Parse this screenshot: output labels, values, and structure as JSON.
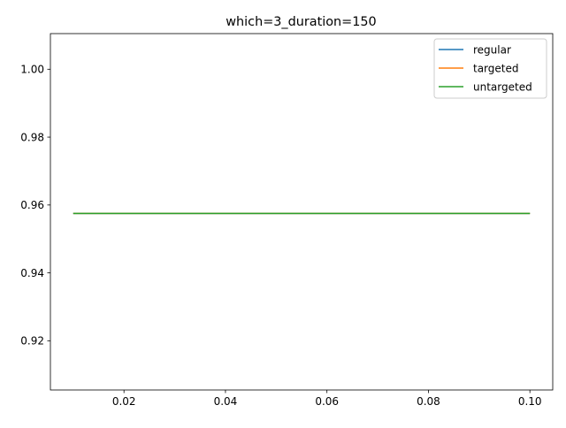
{
  "chart_data": {
    "type": "line",
    "title": "which=3_duration=150",
    "xlabel": "",
    "ylabel": "",
    "xlim": [
      0.0055,
      0.1045
    ],
    "ylim": [
      0.9055,
      1.0105
    ],
    "x_ticks": [
      0.02,
      0.04,
      0.06,
      0.08,
      0.1
    ],
    "x_tick_labels": [
      "0.02",
      "0.04",
      "0.06",
      "0.08",
      "0.10"
    ],
    "y_ticks": [
      0.92,
      0.94,
      0.96,
      0.98,
      1.0
    ],
    "y_tick_labels": [
      "0.92",
      "0.94",
      "0.96",
      "0.98",
      "1.00"
    ],
    "grid": false,
    "legend_position": "top-right",
    "series": [
      {
        "name": "regular",
        "color": "#1f77b4",
        "x": [
          0.01,
          0.1
        ],
        "y": [
          0.9575,
          0.9575
        ]
      },
      {
        "name": "targeted",
        "color": "#ff7f0e",
        "x": [
          0.01,
          0.1
        ],
        "y": [
          0.9575,
          0.9575
        ]
      },
      {
        "name": "untargeted",
        "color": "#2ca02c",
        "x": [
          0.01,
          0.1
        ],
        "y": [
          0.9575,
          0.9575
        ]
      }
    ]
  }
}
